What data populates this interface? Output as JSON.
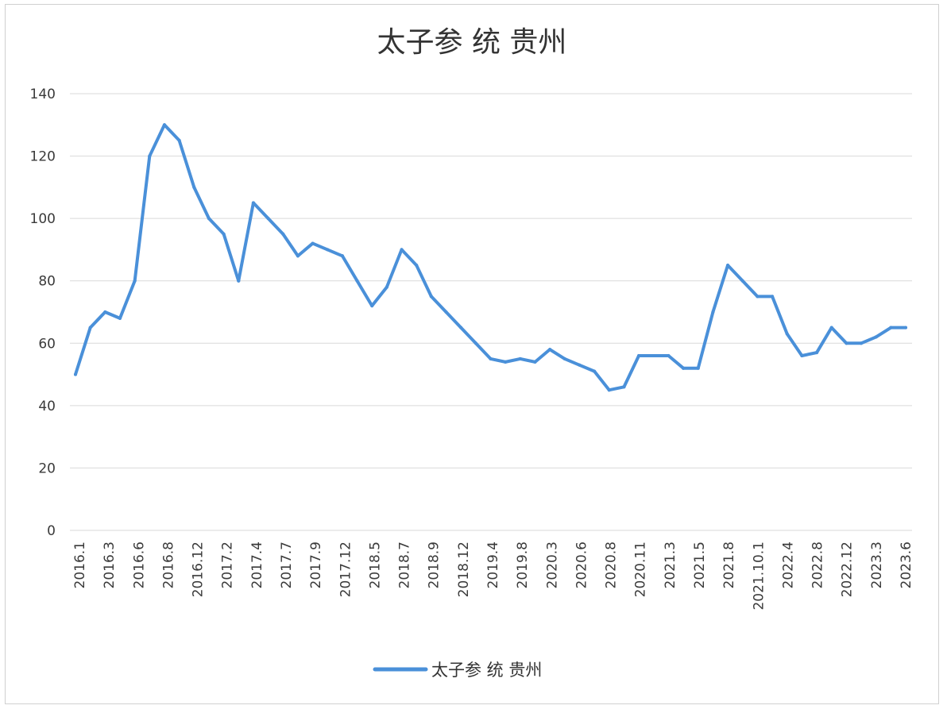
{
  "chart_data": {
    "type": "line",
    "title": "太子参 统 贵州",
    "xlabel": "",
    "ylabel": "",
    "ylim": [
      0,
      140
    ],
    "yticks": [
      0,
      20,
      40,
      60,
      80,
      100,
      120,
      140
    ],
    "grid": true,
    "legend_position": "bottom",
    "color": "#4a90d9",
    "x_tick_labels": [
      "2016.1",
      "2016.3",
      "2016.6",
      "2016.8",
      "2016.12",
      "2017.2",
      "2017.4",
      "2017.7",
      "2017.9",
      "2017.12",
      "2018.5",
      "2018.7",
      "2018.9",
      "2018.12",
      "2019.4",
      "2019.8",
      "2020.3",
      "2020.6",
      "2020.8",
      "2020.11",
      "2021.3",
      "2021.5",
      "2021.8",
      "2021.10.1",
      "2022.4",
      "2022.8",
      "2022.12",
      "2023.3",
      "2023.6"
    ],
    "series": [
      {
        "name": "太子参 统 贵州",
        "values": [
          50,
          65,
          70,
          68,
          80,
          120,
          130,
          125,
          110,
          100,
          95,
          80,
          105,
          100,
          95,
          88,
          92,
          90,
          88,
          80,
          72,
          78,
          90,
          85,
          75,
          70,
          65,
          60,
          55,
          54,
          55,
          54,
          58,
          55,
          53,
          51,
          45,
          46,
          56,
          56,
          56,
          52,
          52,
          70,
          85,
          80,
          75,
          75,
          63,
          56,
          57,
          65,
          60,
          60,
          62,
          65,
          65
        ]
      }
    ]
  }
}
